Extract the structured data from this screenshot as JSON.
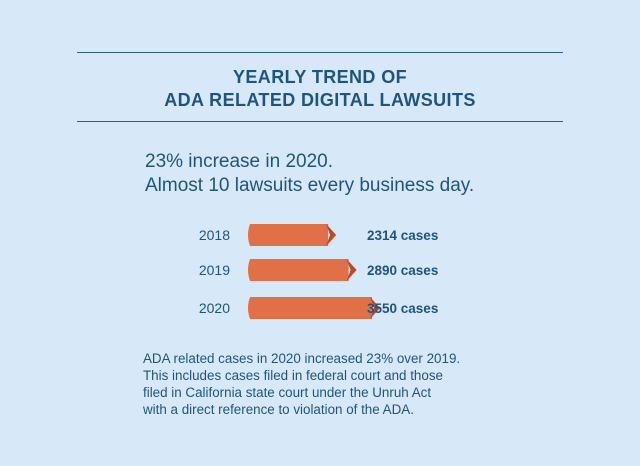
{
  "title": {
    "line1": "YEARLY TREND OF",
    "line2": "ADA RELATED DIGITAL LAWSUITS"
  },
  "headline": {
    "line1": "23% increase in 2020.",
    "line2": "Almost 10 lawsuits every business day."
  },
  "chart_data": {
    "type": "bar",
    "orientation": "horizontal",
    "categories": [
      "2018",
      "2019",
      "2020"
    ],
    "values": [
      2314,
      2890,
      3550
    ],
    "value_labels": [
      "2314 cases",
      "2890 cases",
      "3550 cases"
    ],
    "title": "",
    "xlabel": "",
    "ylabel": "",
    "grid": false,
    "colors": {
      "bar": "#e07048",
      "bar_tip": "#c4461f",
      "text": "#1f5480"
    }
  },
  "footnote": {
    "line1": "ADA related cases in 2020 increased 23% over 2019.",
    "line2": "This includes cases filed in federal court and those",
    "line3": "filed in California state court under the Unruh Act",
    "line4": "with a direct reference to violation of the ADA."
  }
}
